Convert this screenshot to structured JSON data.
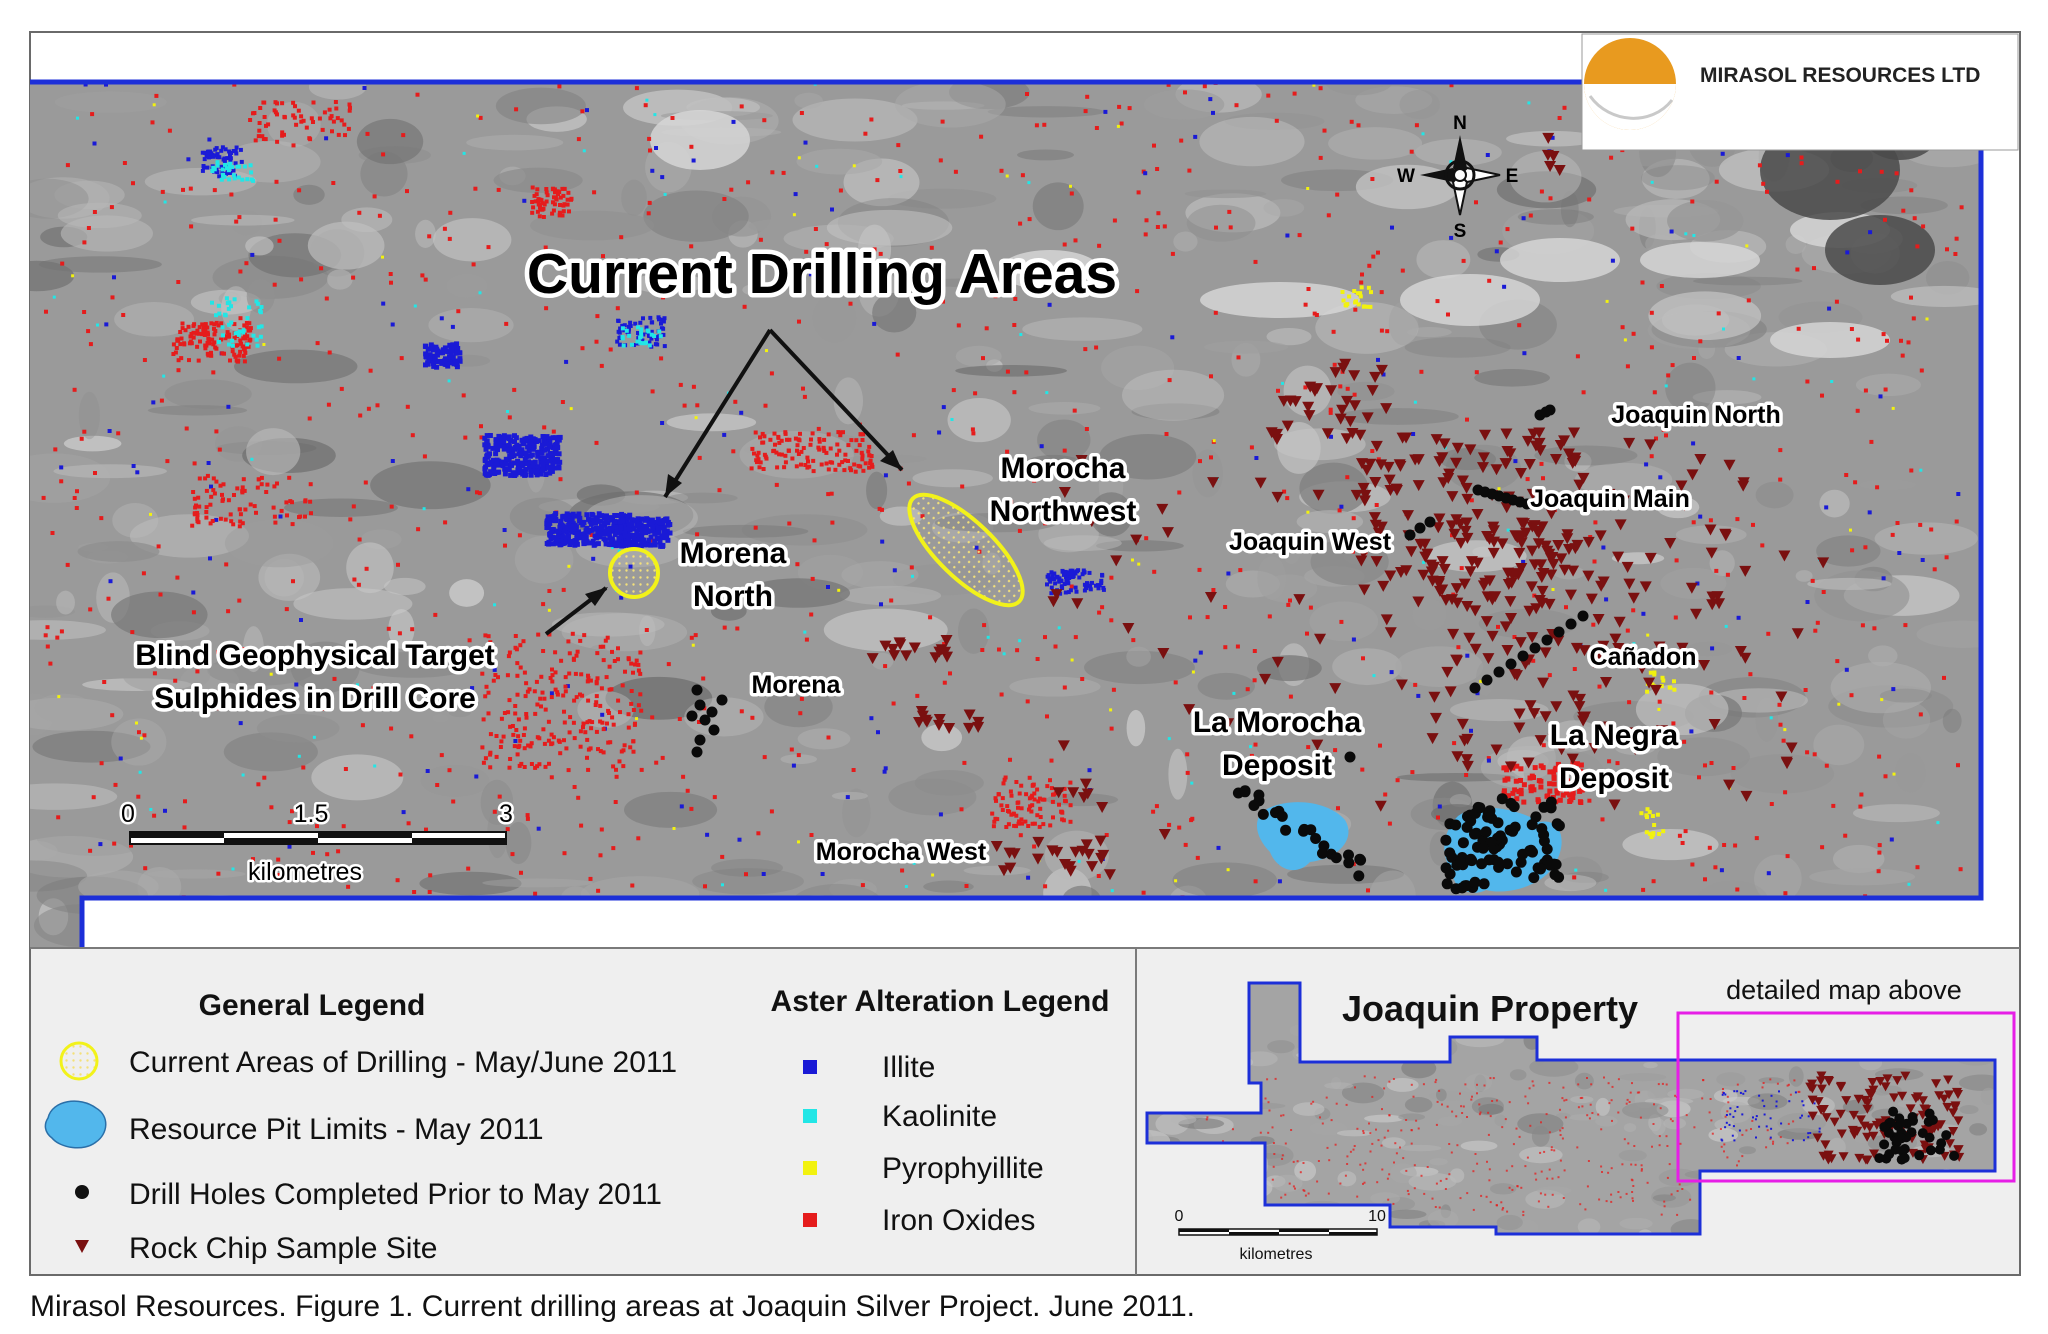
{
  "company": {
    "name": "MIRASOL RESOURCES LTD",
    "accent": "#e89a1f"
  },
  "main_map": {
    "title": "Current Drilling Areas",
    "compass": {
      "n": "N",
      "s": "S",
      "e": "E",
      "w": "W"
    },
    "place_labels": {
      "joaquin_north": "Joaquin North",
      "joaquin_main": "Joaquin Main",
      "joaquin_west": "Joaquin West",
      "morocha_nw_1": "Morocha",
      "morocha_nw_2": "Northwest",
      "morena_north_1": "Morena",
      "morena_north_2": "North",
      "morena": "Morena",
      "canadon": "Cañadon",
      "la_morocha_1": "La Morocha",
      "la_morocha_2": "Deposit",
      "la_negra_1": "La Negra",
      "la_negra_2": "Deposit",
      "morocha_west": "Morocha West",
      "blind_1": "Blind Geophysical Target",
      "blind_2": "Sulphides in Drill Core"
    },
    "scale": {
      "t0": "0",
      "t1": "1.5",
      "t2": "3",
      "unit": "kilometres"
    }
  },
  "general_legend": {
    "title": "General Legend",
    "items": [
      {
        "label": "Current Areas of Drilling - May/June 2011",
        "symbol": "yellow-dotted-ellipse"
      },
      {
        "label": "Resource Pit Limits - May 2011",
        "symbol": "blue-blob"
      },
      {
        "label": "Drill Holes Completed Prior to May 2011",
        "symbol": "black-dot"
      },
      {
        "label": "Rock Chip Sample Site",
        "symbol": "dark-red-triangle"
      }
    ]
  },
  "aster_legend": {
    "title": "Aster Alteration Legend",
    "items": [
      {
        "label": "Illite",
        "color": "#1a1ad6"
      },
      {
        "label": "Kaolinite",
        "color": "#22e6e6"
      },
      {
        "label": "Pyrophyillite",
        "color": "#f2f20f"
      },
      {
        "label": "Iron Oxides",
        "color": "#e51c1c"
      }
    ]
  },
  "inset": {
    "title": "Joaquin Property",
    "note": "detailed map above",
    "scale": {
      "t0": "0",
      "t1": "10",
      "unit": "kilometres"
    },
    "highlight_color": "#e61ee6"
  },
  "caption": "Mirasol Resources. Figure 1. Current drilling areas at Joaquin Silver Project. June 2011."
}
